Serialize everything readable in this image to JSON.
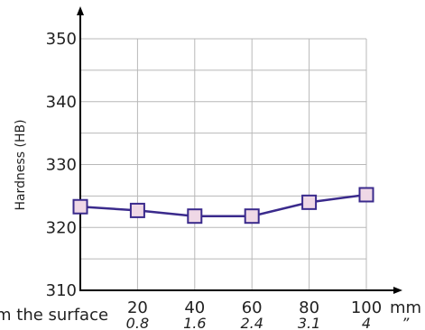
{
  "chart_data": {
    "type": "line",
    "title": "",
    "ylabel": "Hardness (HB)",
    "xlabel": "m the surface",
    "x_unit": "mm",
    "x_sub_unit": "”",
    "x": [
      0,
      20,
      40,
      60,
      80,
      100
    ],
    "x_tick_labels": [
      "20",
      "40",
      "60",
      "80",
      "100"
    ],
    "x_sub_tick_labels": [
      "0.8",
      "1.6",
      "2.4",
      "3.1",
      "4"
    ],
    "y_ticks": [
      310,
      320,
      330,
      340,
      350
    ],
    "xlim": [
      0,
      100
    ],
    "ylim": [
      310,
      352
    ],
    "grid": true,
    "series": [
      {
        "values": [
          323.3,
          322.7,
          321.8,
          321.8,
          324.0,
          325.2
        ]
      }
    ],
    "colors": {
      "line": "#3a2a8c",
      "marker_fill": "#efd8e6",
      "marker_stroke": "#3a2a8c",
      "grid": "#b8b8b8",
      "axis": "#000000"
    }
  }
}
